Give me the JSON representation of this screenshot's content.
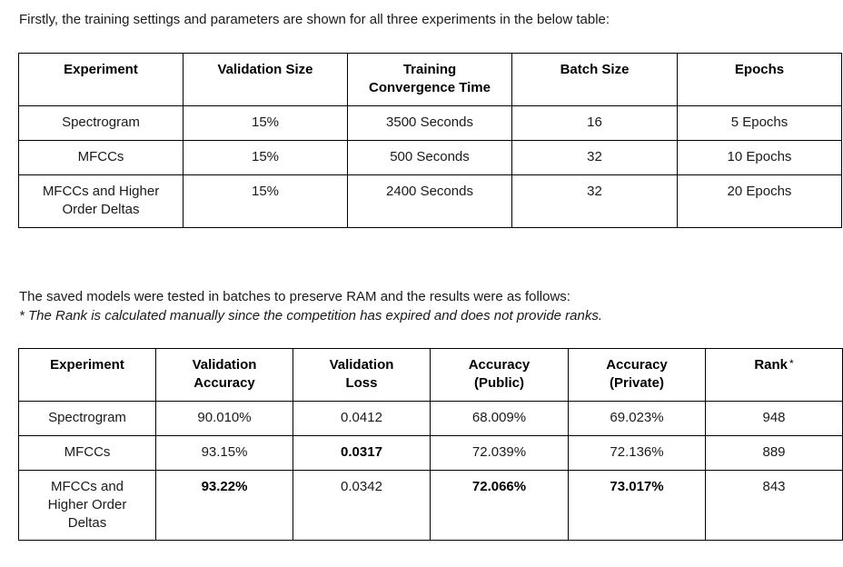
{
  "intro_text": "Firstly, the training settings and parameters are shown for all three experiments in the below table:",
  "table1": {
    "headers": [
      "Experiment",
      "Validation Size",
      "Training Convergence Time",
      "Batch Size",
      "Epochs"
    ],
    "rows": [
      [
        "Spectrogram",
        "15%",
        "3500 Seconds",
        "16",
        "5 Epochs"
      ],
      [
        "MFCCs",
        "15%",
        "500 Seconds",
        "32",
        "10 Epochs"
      ],
      [
        "MFCCs and Higher Order Deltas",
        "15%",
        "2400 Seconds",
        "32",
        "20 Epochs"
      ]
    ]
  },
  "results_text": "The saved models were tested in batches to preserve RAM and the results were as follows:",
  "rank_note": "* The Rank is calculated manually since the competition has expired and does not provide ranks.",
  "table2": {
    "headers": [
      "Experiment",
      "Validation Accuracy",
      "Validation Loss",
      "Accuracy (Public)",
      "Accuracy (Private)",
      "Rank"
    ],
    "rank_marker": "*",
    "rows": [
      [
        "Spectrogram",
        "90.010%",
        "0.0412",
        "68.009%",
        "69.023%",
        "948"
      ],
      [
        "MFCCs",
        "93.15%",
        "0.0317",
        "72.039%",
        "72.136%",
        "889"
      ],
      [
        "MFCCs and Higher Order Deltas",
        "93.22%",
        "0.0342",
        "72.066%",
        "73.017%",
        "843"
      ]
    ]
  }
}
